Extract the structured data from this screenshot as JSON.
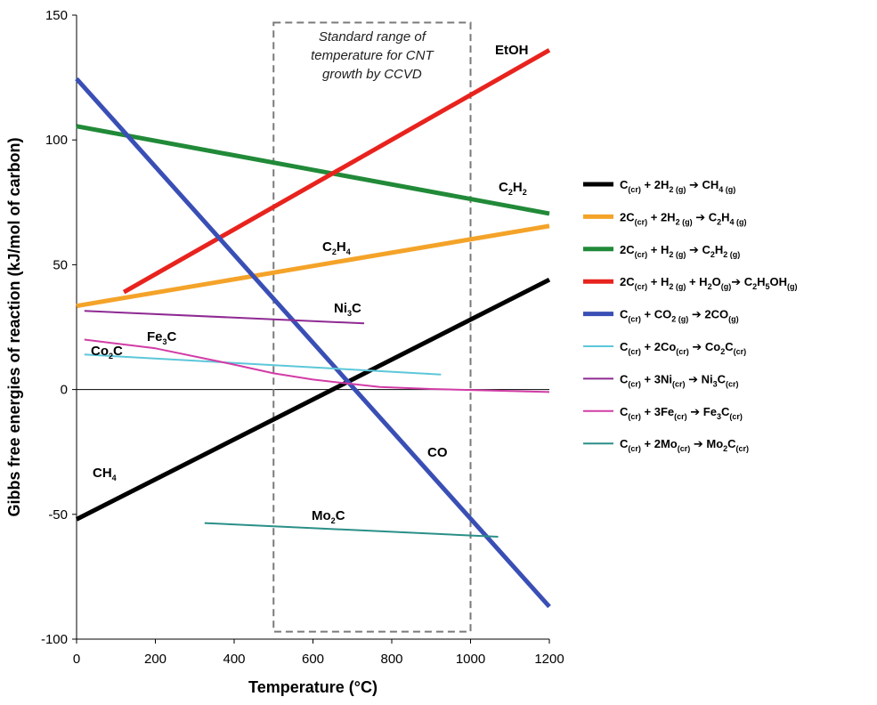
{
  "chart_data": {
    "type": "line",
    "xlabel": "Temperature (°C)",
    "ylabel": "Gibbs free energies of reaction (kJ/mol of carbon)",
    "xlim": [
      0,
      1200
    ],
    "ylim": [
      -100,
      150
    ],
    "xticks": [
      0,
      200,
      400,
      600,
      800,
      1000,
      1200
    ],
    "yticks": [
      -100,
      -50,
      0,
      50,
      100,
      150
    ],
    "ytick_labels": [
      "-100",
      "-50",
      "0",
      "50",
      "100",
      "150"
    ],
    "grid": false,
    "legend_position": "right",
    "zero_line": true,
    "region": {
      "x": [
        500,
        1000
      ],
      "y": [
        -97,
        147
      ],
      "label_lines": [
        "Standard range of",
        "temperature for CNT",
        "growth by CCVD"
      ]
    },
    "series": [
      {
        "id": "ch4",
        "color": "#000000",
        "width": 5,
        "x": [
          0,
          1200
        ],
        "y": [
          -52,
          44
        ],
        "legend": [
          [
            "t",
            "C"
          ],
          [
            "s",
            "(cr)"
          ],
          [
            "t",
            " + 2H"
          ],
          [
            "s",
            "2 (g)"
          ],
          [
            "t",
            " ➔ CH"
          ],
          [
            "s",
            "4 (g)"
          ]
        ],
        "label": [
          [
            "t",
            "CH"
          ],
          [
            "s",
            "4"
          ]
        ]
      },
      {
        "id": "c2h4",
        "color": "#F4A329",
        "width": 5,
        "x": [
          0,
          1200
        ],
        "y": [
          33.5,
          65.5
        ],
        "legend": [
          [
            "t",
            "2C"
          ],
          [
            "s",
            "(cr)"
          ],
          [
            "t",
            " + 2H"
          ],
          [
            "s",
            "2 (g)"
          ],
          [
            "t",
            " ➔ C"
          ],
          [
            "s",
            "2"
          ],
          [
            "t",
            "H"
          ],
          [
            "s",
            "4 (g)"
          ]
        ],
        "label": [
          [
            "t",
            "C"
          ],
          [
            "s",
            "2"
          ],
          [
            "t",
            "H"
          ],
          [
            "s",
            "4"
          ]
        ]
      },
      {
        "id": "c2h2",
        "color": "#218A38",
        "width": 5,
        "x": [
          0,
          1200
        ],
        "y": [
          105.5,
          70.5
        ],
        "legend": [
          [
            "t",
            "2C"
          ],
          [
            "s",
            "(cr)"
          ],
          [
            "t",
            " + H"
          ],
          [
            "s",
            "2 (g)"
          ],
          [
            "t",
            " ➔ C"
          ],
          [
            "s",
            "2"
          ],
          [
            "t",
            "H"
          ],
          [
            "s",
            "2 (g)"
          ]
        ],
        "label": [
          [
            "t",
            "C"
          ],
          [
            "s",
            "2"
          ],
          [
            "t",
            "H"
          ],
          [
            "s",
            "2"
          ]
        ]
      },
      {
        "id": "etoh",
        "color": "#E8231E",
        "width": 5,
        "x": [
          120,
          1200
        ],
        "y": [
          39,
          136
        ],
        "legend": [
          [
            "t",
            "2C"
          ],
          [
            "s",
            "(cr)"
          ],
          [
            "t",
            " + H"
          ],
          [
            "s",
            "2 (g)"
          ],
          [
            "t",
            " + H"
          ],
          [
            "s",
            "2"
          ],
          [
            "t",
            "O"
          ],
          [
            "s",
            "(g)"
          ],
          [
            "t",
            "➔ C"
          ],
          [
            "s",
            "2"
          ],
          [
            "t",
            "H"
          ],
          [
            "s",
            "5"
          ],
          [
            "t",
            "OH"
          ],
          [
            "s",
            "(g)"
          ]
        ],
        "label": [
          [
            "t",
            "EtOH"
          ]
        ]
      },
      {
        "id": "co",
        "color": "#3A4FB5",
        "width": 5,
        "x": [
          0,
          1200
        ],
        "y": [
          124.5,
          -87
        ],
        "legend": [
          [
            "t",
            "C"
          ],
          [
            "s",
            "(cr)"
          ],
          [
            "t",
            " + CO"
          ],
          [
            "s",
            "2 (g)"
          ],
          [
            "t",
            " ➔ 2CO"
          ],
          [
            "s",
            "(g)"
          ]
        ],
        "label": [
          [
            "t",
            "CO"
          ]
        ]
      },
      {
        "id": "co2c",
        "color": "#5CC7D9",
        "width": 2,
        "x": [
          20,
          925
        ],
        "y": [
          14,
          6
        ],
        "legend": [
          [
            "t",
            "C"
          ],
          [
            "s",
            "(cr)"
          ],
          [
            "t",
            " + 2Co"
          ],
          [
            "s",
            "(cr)"
          ],
          [
            "t",
            " ➔ Co"
          ],
          [
            "s",
            "2"
          ],
          [
            "t",
            "C"
          ],
          [
            "s",
            "(cr)"
          ]
        ],
        "label": [
          [
            "t",
            "Co"
          ],
          [
            "s",
            "2"
          ],
          [
            "t",
            "C"
          ]
        ]
      },
      {
        "id": "ni3c",
        "color": "#8E2A93",
        "width": 2,
        "x": [
          20,
          730
        ],
        "y": [
          31.5,
          26.5
        ],
        "legend": [
          [
            "t",
            "C"
          ],
          [
            "s",
            "(cr)"
          ],
          [
            "t",
            " + 3Ni"
          ],
          [
            "s",
            "(cr)"
          ],
          [
            "t",
            " ➔ Ni"
          ],
          [
            "s",
            "3"
          ],
          [
            "t",
            "C"
          ],
          [
            "s",
            "(cr)"
          ]
        ],
        "label": [
          [
            "t",
            "Ni"
          ],
          [
            "s",
            "3"
          ],
          [
            "t",
            "C"
          ]
        ]
      },
      {
        "id": "fe3c",
        "color": "#D23CA6",
        "width": 2,
        "x": [
          20,
          200,
          400,
          500,
          600,
          700,
          770,
          900,
          1200
        ],
        "y": [
          20,
          16.5,
          10,
          6.5,
          4,
          2.2,
          1,
          0.2,
          -1
        ],
        "legend": [
          [
            "t",
            "C"
          ],
          [
            "s",
            "(cr)"
          ],
          [
            "t",
            " + 3Fe"
          ],
          [
            "s",
            "(cr)"
          ],
          [
            "t",
            " ➔ Fe"
          ],
          [
            "s",
            "3"
          ],
          [
            "t",
            "C"
          ],
          [
            "s",
            "(cr)"
          ]
        ],
        "label": [
          [
            "t",
            "Fe"
          ],
          [
            "s",
            "3"
          ],
          [
            "t",
            "C"
          ]
        ]
      },
      {
        "id": "mo2c",
        "color": "#2A8F88",
        "width": 2,
        "x": [
          325,
          1070
        ],
        "y": [
          -53.5,
          -59
        ],
        "legend": [
          [
            "t",
            "C"
          ],
          [
            "s",
            "(cr)"
          ],
          [
            "t",
            " + 2Mo"
          ],
          [
            "s",
            "(cr)"
          ],
          [
            "t",
            " ➔ Mo"
          ],
          [
            "s",
            "2"
          ],
          [
            "t",
            "C"
          ],
          [
            "s",
            "(cr)"
          ]
        ],
        "label": [
          [
            "t",
            "Mo"
          ],
          [
            "s",
            "2"
          ],
          [
            "t",
            "C"
          ]
        ]
      }
    ]
  }
}
